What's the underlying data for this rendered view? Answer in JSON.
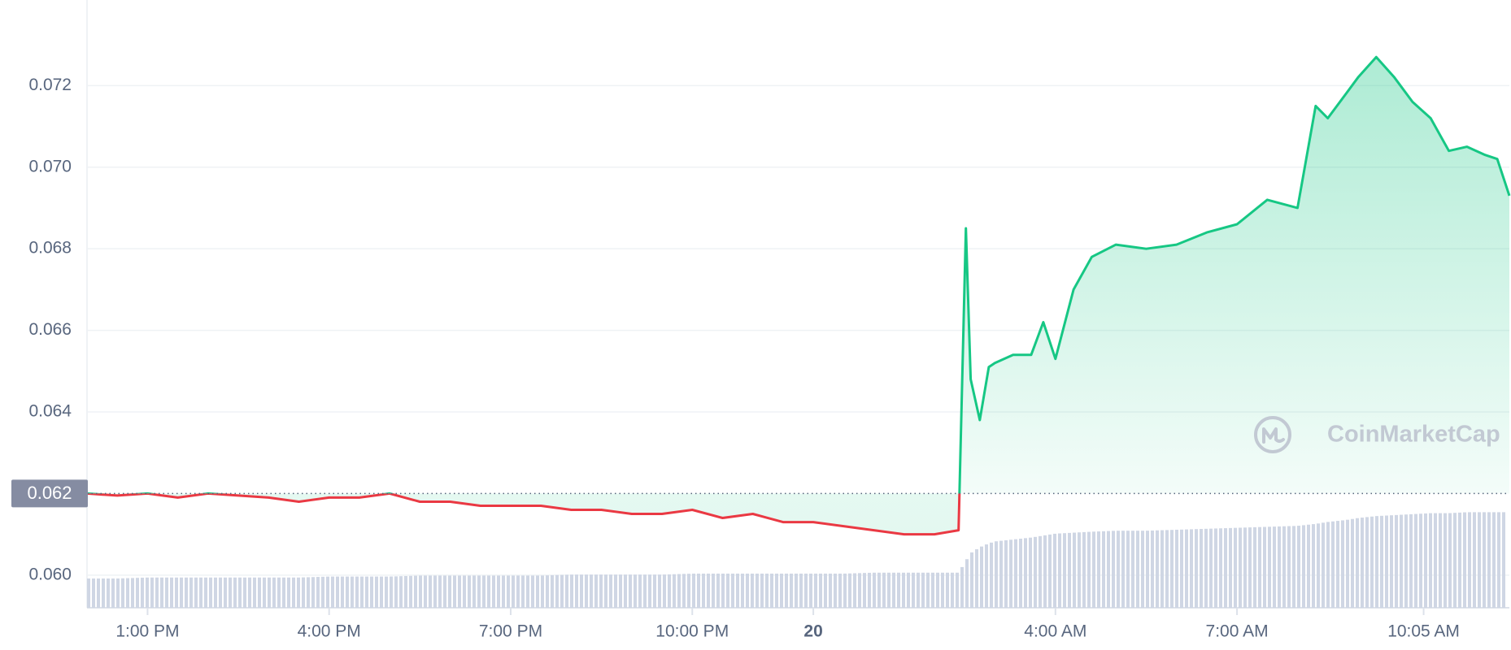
{
  "chart_data": {
    "type": "line",
    "title": "",
    "xlabel": "",
    "ylabel": "",
    "y_ticks": [
      "0.072",
      "0.070",
      "0.068",
      "0.066",
      "0.064",
      "0.062",
      "0.060"
    ],
    "y_tick_values": [
      0.072,
      0.07,
      0.068,
      0.066,
      0.064,
      0.062,
      0.06
    ],
    "ylim": [
      0.0592,
      0.0735
    ],
    "x_ticks": [
      "1:00 PM",
      "4:00 PM",
      "7:00 PM",
      "10:00 PM",
      "20",
      "4:00 AM",
      "7:00 AM",
      "10:05 AM"
    ],
    "x_tick_hours": [
      13,
      16,
      19,
      22,
      24,
      28,
      31,
      34.0833
    ],
    "xlim_hours": [
      12,
      35.5
    ],
    "reference_price_label": "0.062",
    "reference_price": 0.062,
    "grid": true,
    "legend": "none",
    "watermark": "CoinMarketCap",
    "colors": {
      "up_line": "#16c784",
      "down_line": "#ea3943",
      "volume_bar": "#cfd6e4",
      "grid": "#eff2f5",
      "ref_label_bg": "#858ca2",
      "tick_text": "#58667e"
    },
    "series": [
      {
        "x_hours": [
          12,
          12.5,
          13,
          13.5,
          14,
          14.5,
          15,
          15.5,
          16,
          16.5,
          17,
          17.5,
          18,
          18.5,
          19,
          19.5,
          20,
          20.5,
          21,
          21.5,
          22,
          22.5,
          23,
          23.5,
          24,
          24.5,
          25,
          25.5,
          26,
          26.4,
          26.52,
          26.6,
          26.75,
          26.9,
          27,
          27.3,
          27.6,
          27.8,
          28,
          28.3,
          28.6,
          29,
          29.5,
          30,
          30.5,
          31,
          31.5,
          32,
          32.3,
          32.5,
          32.8,
          33,
          33.3,
          33.6,
          33.9,
          34.2,
          34.5,
          34.8,
          35.1,
          35.3,
          35.5
        ],
        "values": [
          0.062,
          0.06195,
          0.062,
          0.0619,
          0.062,
          0.06195,
          0.0619,
          0.0618,
          0.0619,
          0.0619,
          0.062,
          0.0618,
          0.0618,
          0.0617,
          0.0617,
          0.0617,
          0.0616,
          0.0616,
          0.0615,
          0.0615,
          0.0616,
          0.0614,
          0.0615,
          0.0613,
          0.0613,
          0.0612,
          0.0611,
          0.061,
          0.061,
          0.0611,
          0.0685,
          0.0648,
          0.0638,
          0.0651,
          0.0652,
          0.0654,
          0.0654,
          0.0662,
          0.0653,
          0.067,
          0.0678,
          0.0681,
          0.068,
          0.0681,
          0.0684,
          0.0686,
          0.0692,
          0.069,
          0.0715,
          0.0712,
          0.0718,
          0.0722,
          0.0727,
          0.0722,
          0.0716,
          0.0712,
          0.0704,
          0.0705,
          0.0703,
          0.0702,
          0.0693
        ]
      }
    ],
    "volume_relative": [
      0.3,
      0.3,
      0.31,
      0.31,
      0.31,
      0.31,
      0.31,
      0.31,
      0.32,
      0.32,
      0.32,
      0.33,
      0.33,
      0.33,
      0.33,
      0.33,
      0.34,
      0.34,
      0.34,
      0.34,
      0.35,
      0.35,
      0.35,
      0.35,
      0.35,
      0.35,
      0.36,
      0.36,
      0.36,
      0.36,
      0.48,
      0.56,
      0.62,
      0.66,
      0.68,
      0.7,
      0.72,
      0.74,
      0.76,
      0.77,
      0.78,
      0.79,
      0.79,
      0.8,
      0.81,
      0.82,
      0.83,
      0.84,
      0.86,
      0.88,
      0.9,
      0.92,
      0.94,
      0.95,
      0.96,
      0.97,
      0.97,
      0.98,
      0.98,
      0.98,
      0.98
    ]
  }
}
